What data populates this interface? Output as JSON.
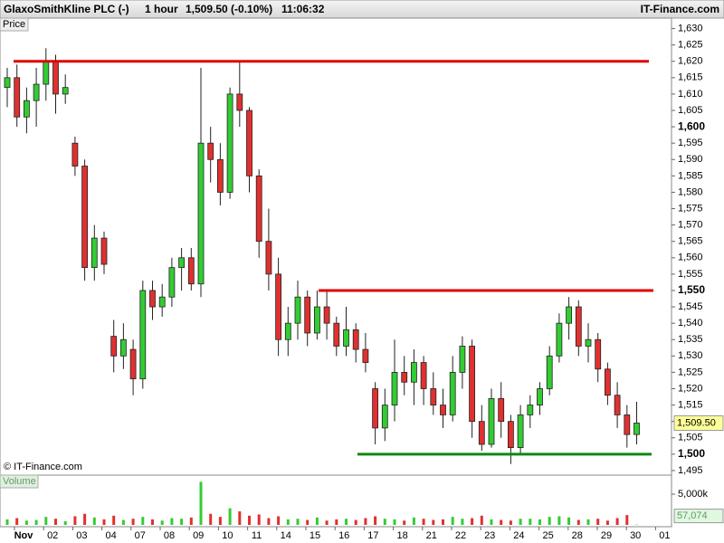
{
  "header": {
    "symbol": "GlaxoSmithKline PLC (-)",
    "interval": "1 hour",
    "quote": "1,509.50 (-0.10%)",
    "time": "11:06:32",
    "brand": "IT-Finance.com"
  },
  "chart_data": {
    "type": "candlestick",
    "pane_label": "Price",
    "watermark": "© IT-Finance.com",
    "categories": [
      "Nov",
      "02",
      "03",
      "04",
      "07",
      "08",
      "09",
      "10",
      "11",
      "14",
      "15",
      "16",
      "17",
      "18",
      "21",
      "22",
      "23",
      "24",
      "25",
      "28",
      "29",
      "30",
      "01"
    ],
    "ylim": [
      1493.6,
      1633.2
    ],
    "yticks": [
      {
        "value": 1495,
        "label": "1,495"
      },
      {
        "value": 1500,
        "label": "1,500"
      },
      {
        "value": 1505,
        "label": "1,505"
      },
      {
        "value": 1510,
        "label": "1,510"
      },
      {
        "value": 1515,
        "label": "1,515"
      },
      {
        "value": 1520,
        "label": "1,520"
      },
      {
        "value": 1525,
        "label": "1,525"
      },
      {
        "value": 1530,
        "label": "1,530"
      },
      {
        "value": 1535,
        "label": "1,535"
      },
      {
        "value": 1540,
        "label": "1,540"
      },
      {
        "value": 1545,
        "label": "1,545"
      },
      {
        "value": 1550,
        "label": "1,550"
      },
      {
        "value": 1555,
        "label": "1,555"
      },
      {
        "value": 1560,
        "label": "1,560"
      },
      {
        "value": 1565,
        "label": "1,565"
      },
      {
        "value": 1570,
        "label": "1,570"
      },
      {
        "value": 1575,
        "label": "1,575"
      },
      {
        "value": 1580,
        "label": "1,580"
      },
      {
        "value": 1585,
        "label": "1,585"
      },
      {
        "value": 1590,
        "label": "1,590"
      },
      {
        "value": 1595,
        "label": "1,595"
      },
      {
        "value": 1600,
        "label": "1,600"
      },
      {
        "value": 1605,
        "label": "1,605"
      },
      {
        "value": 1610,
        "label": "1,610"
      },
      {
        "value": 1615,
        "label": "1,615"
      },
      {
        "value": 1620,
        "label": "1,620"
      },
      {
        "value": 1625,
        "label": "1,625"
      },
      {
        "value": 1630,
        "label": "1,630"
      }
    ],
    "up_color": "#33cc33",
    "down_color": "#e03030",
    "open": [
      1612,
      1615,
      1603,
      1608,
      1613,
      1620,
      1610,
      1595,
      1588,
      1557,
      1566,
      1536,
      1530,
      1532,
      1523,
      1550,
      1545,
      1548,
      1557,
      1560,
      1552,
      1595,
      1590,
      1580,
      1610,
      1605,
      1585,
      1565,
      1555,
      1535,
      1540,
      1548,
      1537,
      1545,
      1540,
      1533,
      1538,
      1532,
      1520,
      1508,
      1515,
      1525,
      1522,
      1528,
      1520,
      1515,
      1512,
      1525,
      1533,
      1510,
      1503,
      1517,
      1510,
      1502,
      1512,
      1515,
      1520,
      1530,
      1540,
      1545,
      1533,
      1535,
      1526,
      1518,
      1512,
      1506
    ],
    "high": [
      1618,
      1619,
      1612,
      1618,
      1624,
      1622,
      1616,
      1597,
      1590,
      1570,
      1568,
      1541,
      1540,
      1535,
      1553,
      1553,
      1552,
      1560,
      1563,
      1563,
      1618,
      1600,
      1595,
      1612,
      1620,
      1606,
      1587,
      1575,
      1560,
      1545,
      1553,
      1550,
      1550,
      1550,
      1542,
      1545,
      1540,
      1537,
      1522,
      1520,
      1535,
      1530,
      1532,
      1530,
      1525,
      1520,
      1530,
      1536,
      1535,
      1515,
      1520,
      1522,
      1512,
      1515,
      1518,
      1522,
      1533,
      1543,
      1548,
      1547,
      1540,
      1537,
      1528,
      1522,
      1515,
      1516
    ],
    "low": [
      1606,
      1600,
      1598,
      1600,
      1608,
      1604,
      1607,
      1585,
      1553,
      1553,
      1555,
      1525,
      1526,
      1518,
      1520,
      1541,
      1542,
      1545,
      1550,
      1550,
      1548,
      1583,
      1576,
      1578,
      1600,
      1580,
      1560,
      1550,
      1530,
      1530,
      1535,
      1533,
      1535,
      1535,
      1530,
      1530,
      1528,
      1525,
      1503,
      1504,
      1510,
      1518,
      1515,
      1515,
      1512,
      1508,
      1510,
      1520,
      1505,
      1501,
      1502,
      1505,
      1497,
      1500,
      1508,
      1512,
      1518,
      1528,
      1535,
      1530,
      1528,
      1522,
      1515,
      1508,
      1502,
      1503
    ],
    "close": [
      1615,
      1603,
      1608,
      1613,
      1620,
      1610,
      1612,
      1588,
      1557,
      1566,
      1558,
      1530,
      1535,
      1523,
      1550,
      1545,
      1548,
      1557,
      1560,
      1552,
      1595,
      1590,
      1580,
      1610,
      1605,
      1585,
      1565,
      1555,
      1535,
      1540,
      1548,
      1537,
      1545,
      1540,
      1533,
      1538,
      1532,
      1528,
      1508,
      1515,
      1525,
      1522,
      1528,
      1520,
      1515,
      1512,
      1525,
      1533,
      1510,
      1503,
      1517,
      1510,
      1502,
      1512,
      1515,
      1520,
      1530,
      1540,
      1545,
      1533,
      1535,
      1526,
      1518,
      1512,
      1506,
      1509.5
    ],
    "last_price": {
      "value": 1509.5,
      "label": "1,509.50"
    },
    "levels": [
      {
        "value": 1620,
        "color": "#e00000"
      },
      {
        "value": 1550,
        "color": "#e00000"
      },
      {
        "value": 1500,
        "color": "#118811"
      }
    ],
    "volume": {
      "label": "Volume",
      "ylim": [
        0,
        8088
      ],
      "yticks": [
        {
          "value": 5000,
          "label": "5,000k"
        }
      ],
      "values": [
        900,
        1100,
        700,
        800,
        1300,
        1000,
        600,
        1400,
        1800,
        1200,
        900,
        1500,
        800,
        1000,
        1300,
        900,
        700,
        1100,
        1000,
        1200,
        7000,
        1800,
        1300,
        2700,
        2200,
        1500,
        1700,
        1100,
        1400,
        900,
        1000,
        800,
        1200,
        700,
        900,
        1000,
        800,
        1100,
        1400,
        1000,
        900,
        700,
        1200,
        1000,
        800,
        900,
        1300,
        1000,
        1100,
        1500,
        900,
        800,
        700,
        1000,
        1000,
        900,
        1300,
        1400,
        1200,
        800,
        900,
        1000,
        700,
        1100,
        1600,
        57.074
      ],
      "last": {
        "value": 57.074,
        "label": "57,074"
      }
    }
  }
}
